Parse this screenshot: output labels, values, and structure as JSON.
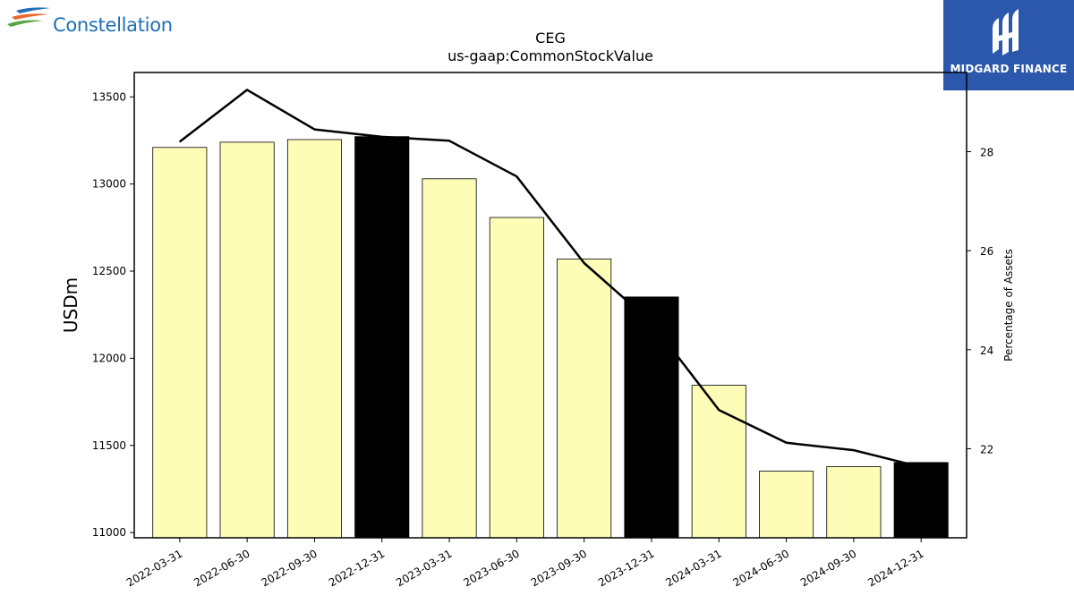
{
  "logos": {
    "left_brand": "Constellation",
    "right_brand": "MIDGARD FINANCE"
  },
  "colors": {
    "bar_default": "#fdfdb8",
    "bar_year_end": "#000000",
    "line": "#000000",
    "logo_right_bg": "#2b57ad",
    "logo_left_text": "#1f6fb5"
  },
  "chart_data": {
    "type": "bar",
    "title": "CEG",
    "subtitle": "us-gaap:CommonStockValue",
    "ylabel": "USDm",
    "y2label": "Percentage of Assets",
    "categories": [
      "2022-03-31",
      "2022-06-30",
      "2022-09-30",
      "2022-12-31",
      "2023-03-31",
      "2023-06-30",
      "2023-09-30",
      "2023-12-31",
      "2024-03-31",
      "2024-06-30",
      "2024-09-30",
      "2024-12-31"
    ],
    "series": [
      {
        "type": "bar",
        "axis": "left",
        "values": [
          13210,
          13240,
          13255,
          13272,
          13030,
          12808,
          12570,
          12352,
          11845,
          11352,
          11378,
          11402
        ],
        "highlighted": [
          false,
          false,
          false,
          true,
          false,
          false,
          false,
          true,
          false,
          false,
          false,
          true
        ]
      },
      {
        "type": "line",
        "axis": "right",
        "values": [
          28.2,
          29.25,
          28.45,
          28.3,
          28.22,
          27.5,
          25.75,
          24.55,
          22.78,
          22.12,
          21.97,
          21.63
        ]
      }
    ],
    "ylim": [
      10970,
      13640
    ],
    "y2lim": [
      20.2,
      29.6
    ],
    "yticks": [
      11000,
      11500,
      12000,
      12500,
      13000,
      13500
    ],
    "y2ticks": [
      22,
      24,
      26,
      28
    ],
    "grid": false,
    "legend": "none"
  }
}
